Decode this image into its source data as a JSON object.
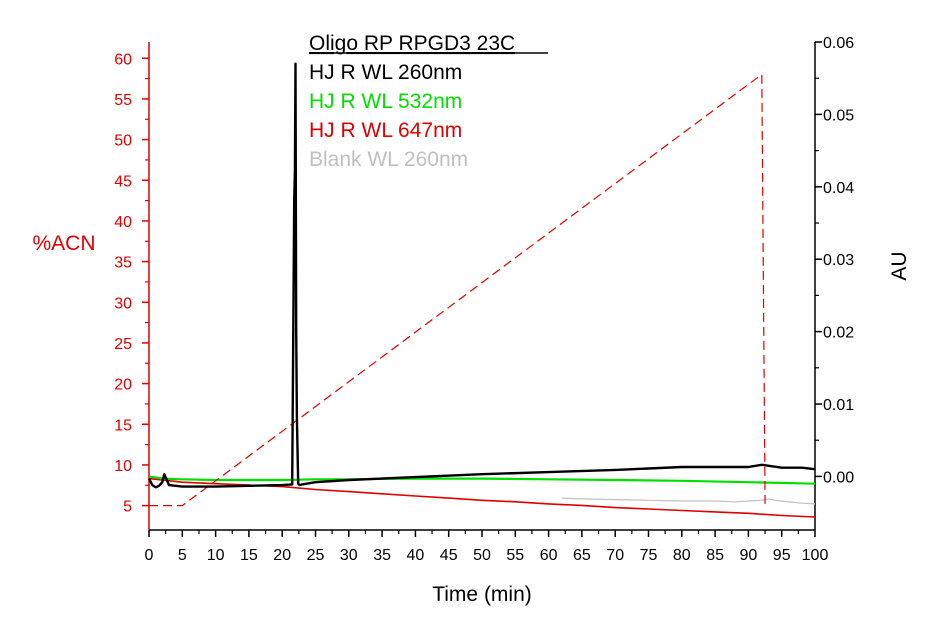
{
  "chart_data": {
    "type": "line",
    "title": "Oligo RP RPGD3 23C",
    "xlabel": "Time (min)",
    "ylabel_left": "%ACN",
    "ylabel_right": "AU",
    "xlim": [
      0,
      100
    ],
    "ylim_left": [
      2,
      62
    ],
    "ylim_right": [
      -0.0074,
      0.06
    ],
    "x_ticks": [
      "0",
      "5",
      "10",
      "15",
      "20",
      "25",
      "30",
      "35",
      "40",
      "45",
      "50",
      "55",
      "60",
      "65",
      "70",
      "75",
      "80",
      "85",
      "90",
      "95",
      "100"
    ],
    "left_ticks": [
      "5",
      "10",
      "15",
      "20",
      "25",
      "30",
      "35",
      "40",
      "45",
      "50",
      "55",
      "60"
    ],
    "right_ticks": [
      "0.00",
      "0.01",
      "0.02",
      "0.03",
      "0.04",
      "0.05",
      "0.06"
    ],
    "grid": false,
    "legend_position": "top-center",
    "colors": {
      "left_axis": "#e00000",
      "right_axis": "#000000",
      "gradient": "#e00000",
      "wl260": "#000000",
      "wl532": "#00e000",
      "wl647": "#e00000",
      "blank": "#c0c0c0"
    },
    "series": [
      {
        "name": "%ACN gradient",
        "axis": "left",
        "style": "dashed",
        "x": [
          0,
          5,
          92,
          92.01,
          92.5
        ],
        "y": [
          5,
          5,
          58,
          58,
          5
        ]
      },
      {
        "name": "HJ R WL 260nm",
        "axis": "right",
        "x": [
          0,
          0.5,
          1,
          1.5,
          2,
          2.3,
          3,
          5,
          10,
          15,
          20,
          21.5,
          21.8,
          21.9,
          22.0,
          22.1,
          22.2,
          22.4,
          22.6,
          23,
          25,
          30,
          40,
          50,
          60,
          70,
          75,
          80,
          85,
          90,
          92,
          95,
          98,
          100
        ],
        "y": [
          -0.0003,
          -0.0012,
          -0.0015,
          -0.0013,
          -0.0008,
          0.0003,
          -0.0012,
          -0.0014,
          -0.0014,
          -0.0013,
          -0.0012,
          -0.0011,
          0.038,
          0.042,
          0.057,
          0.02,
          0.008,
          -0.001,
          -0.0012,
          -0.0011,
          -0.0008,
          -0.0005,
          -0.0001,
          0.0003,
          0.0006,
          0.0009,
          0.0011,
          0.0013,
          0.0013,
          0.0013,
          0.0016,
          0.0012,
          0.0012,
          0.001
        ]
      },
      {
        "name": "HJ R WL 532nm",
        "axis": "right",
        "x": [
          0,
          2,
          5,
          10,
          15,
          20,
          25,
          30,
          40,
          50,
          60,
          70,
          80,
          90,
          100
        ],
        "y": [
          0.0,
          -0.0003,
          -0.0004,
          -0.0005,
          -0.0005,
          -0.0005,
          -0.0004,
          -0.0004,
          -0.0003,
          -0.0003,
          -0.0004,
          -0.0005,
          -0.0006,
          -0.0008,
          -0.001
        ]
      },
      {
        "name": "HJ R WL 647nm",
        "axis": "right",
        "x": [
          0,
          5,
          10,
          15,
          20,
          25,
          30,
          35,
          40,
          45,
          50,
          55,
          60,
          65,
          70,
          75,
          80,
          85,
          90,
          95,
          100
        ],
        "y": [
          -0.0003,
          -0.0008,
          -0.001,
          -0.0012,
          -0.0014,
          -0.0018,
          -0.0021,
          -0.0024,
          -0.0027,
          -0.003,
          -0.0033,
          -0.0035,
          -0.0038,
          -0.004,
          -0.0043,
          -0.0045,
          -0.0047,
          -0.0049,
          -0.0051,
          -0.0054,
          -0.0056
        ]
      },
      {
        "name": "Blank WL 260nm",
        "axis": "right",
        "x": [
          62,
          65,
          70,
          75,
          80,
          85,
          88,
          90,
          92,
          93,
          94,
          95,
          97,
          98,
          100
        ],
        "y": [
          -0.003,
          -0.0031,
          -0.0032,
          -0.0033,
          -0.0034,
          -0.0034,
          -0.0035,
          -0.0034,
          -0.0033,
          -0.0031,
          -0.0033,
          -0.0034,
          -0.0036,
          -0.0037,
          -0.0038
        ]
      }
    ]
  }
}
